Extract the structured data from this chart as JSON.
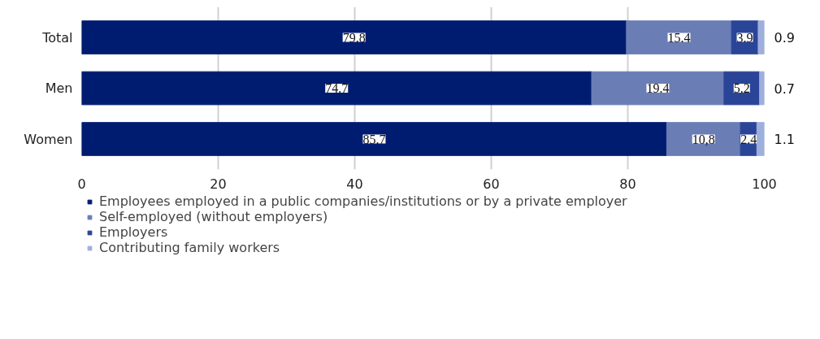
{
  "chart_data": {
    "type": "bar",
    "orientation": "horizontal",
    "stacked": true,
    "categories": [
      "Total",
      "Men",
      "Women"
    ],
    "series": [
      {
        "name": "Employees employed in a public companies/institutions or by a private employer",
        "color": "#001c71",
        "values": [
          79.8,
          74.7,
          85.7
        ],
        "value_labels": [
          "79.8",
          "74.7",
          "85.7"
        ]
      },
      {
        "name": "Self-employed (without employers)",
        "color": "#6a7db5",
        "values": [
          15.4,
          19.4,
          10.8
        ],
        "value_labels": [
          "15.4",
          "19.4",
          "10,8"
        ]
      },
      {
        "name": "Employers",
        "color": "#2a4597",
        "values": [
          3.9,
          5.2,
          2.4
        ],
        "value_labels": [
          "3.9",
          "5.2",
          "2.4"
        ]
      },
      {
        "name": "Contributing family workers",
        "color": "#9eafdc",
        "values": [
          0.9,
          0.7,
          1.1
        ],
        "value_labels": [
          "0.9",
          "0.7",
          "1.1"
        ]
      }
    ],
    "xlim": [
      0,
      100
    ],
    "xticks": [
      0,
      20,
      40,
      60,
      80,
      100
    ],
    "grid": "x",
    "legend": "bottom"
  }
}
